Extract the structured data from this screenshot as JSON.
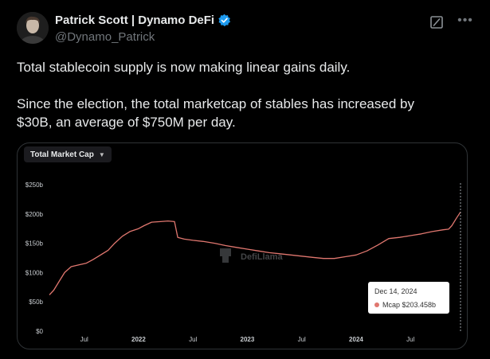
{
  "author": {
    "display_name": "Patrick Scott | Dynamo DeFi",
    "handle": "@Dynamo_Patrick"
  },
  "tweet": {
    "line1": "Total stablecoin supply is now making linear gains daily.",
    "line2": "Since the election, the total marketcap of stables has increased by",
    "line3": "$30B, an average of $750M per day."
  },
  "icons": {
    "grok": "grok-icon",
    "more": "more-icon",
    "verified": "verified-badge-icon"
  },
  "colors": {
    "line": "#e0776f",
    "verified": "#1d9bf0",
    "tooltip_dot": "#e0776f"
  },
  "chart_data": {
    "type": "line",
    "selector_label": "Total Market Cap",
    "watermark": "DefiLlama",
    "y_ticks": [
      "$0",
      "$50b",
      "$100b",
      "$150b",
      "$200b",
      "$250b"
    ],
    "ylim": [
      0,
      250
    ],
    "x_ticks": [
      {
        "label": "Jul",
        "t": 2021.5,
        "bold": false
      },
      {
        "label": "2022",
        "t": 2022.0,
        "bold": true
      },
      {
        "label": "Jul",
        "t": 2022.5,
        "bold": false
      },
      {
        "label": "2023",
        "t": 2023.0,
        "bold": true
      },
      {
        "label": "Jul",
        "t": 2023.5,
        "bold": false
      },
      {
        "label": "2024",
        "t": 2024.0,
        "bold": true
      },
      {
        "label": "Jul",
        "t": 2024.5,
        "bold": false
      }
    ],
    "xlim": [
      2021.18,
      2024.96
    ],
    "series": [
      {
        "name": "Mcap",
        "points": [
          [
            2021.18,
            62
          ],
          [
            2021.22,
            70
          ],
          [
            2021.27,
            85
          ],
          [
            2021.32,
            100
          ],
          [
            2021.38,
            110
          ],
          [
            2021.45,
            113
          ],
          [
            2021.52,
            116
          ],
          [
            2021.58,
            122
          ],
          [
            2021.65,
            130
          ],
          [
            2021.72,
            138
          ],
          [
            2021.78,
            150
          ],
          [
            2021.85,
            162
          ],
          [
            2021.92,
            170
          ],
          [
            2022.0,
            175
          ],
          [
            2022.05,
            180
          ],
          [
            2022.12,
            186
          ],
          [
            2022.2,
            187
          ],
          [
            2022.27,
            188
          ],
          [
            2022.33,
            187
          ],
          [
            2022.36,
            160
          ],
          [
            2022.42,
            157
          ],
          [
            2022.5,
            155
          ],
          [
            2022.6,
            153
          ],
          [
            2022.7,
            150
          ],
          [
            2022.8,
            146
          ],
          [
            2022.9,
            143
          ],
          [
            2023.0,
            140
          ],
          [
            2023.1,
            137
          ],
          [
            2023.2,
            134
          ],
          [
            2023.3,
            132
          ],
          [
            2023.4,
            130
          ],
          [
            2023.5,
            128
          ],
          [
            2023.6,
            126
          ],
          [
            2023.7,
            124
          ],
          [
            2023.8,
            124
          ],
          [
            2023.9,
            127
          ],
          [
            2024.0,
            130
          ],
          [
            2024.1,
            137
          ],
          [
            2024.2,
            147
          ],
          [
            2024.3,
            158
          ],
          [
            2024.4,
            160
          ],
          [
            2024.5,
            163
          ],
          [
            2024.6,
            166
          ],
          [
            2024.7,
            170
          ],
          [
            2024.8,
            173
          ],
          [
            2024.85,
            174
          ],
          [
            2024.88,
            180
          ],
          [
            2024.92,
            192
          ],
          [
            2024.96,
            203.458
          ]
        ]
      }
    ],
    "tooltip": {
      "date": "Dec 14, 2024",
      "label": "Mcap",
      "value": "$203.458b"
    }
  }
}
